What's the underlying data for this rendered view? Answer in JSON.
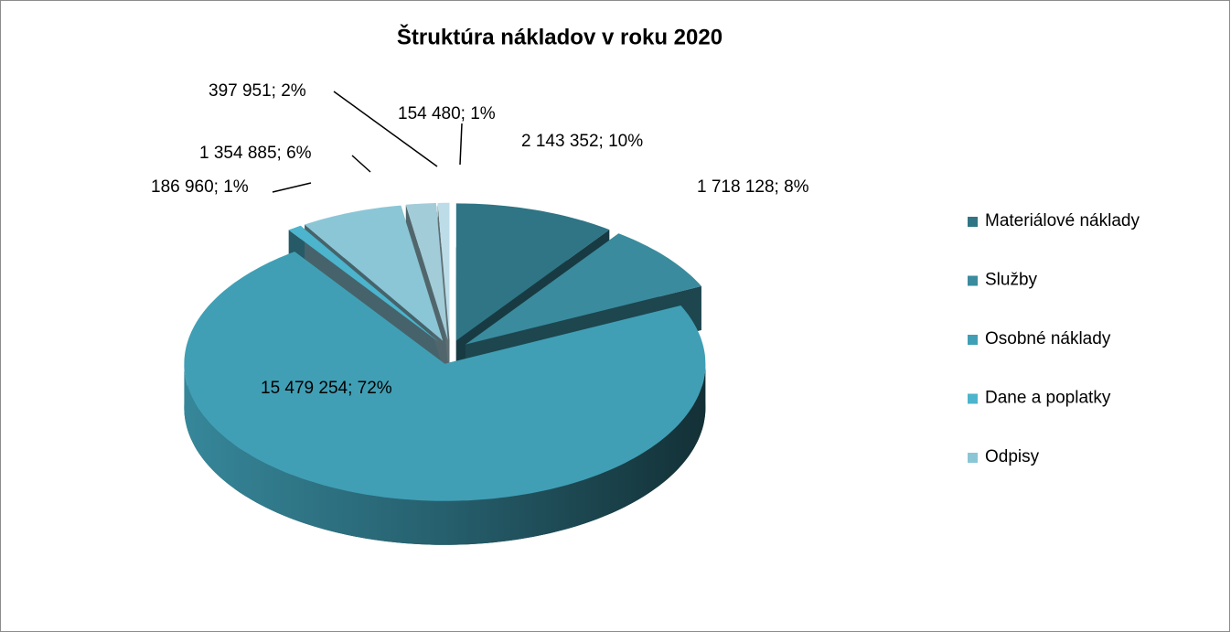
{
  "chart_data": {
    "type": "pie3d",
    "title": "Štruktúra nákladov v roku 2020",
    "categories": [
      "Materiálové náklady",
      "Služby",
      "Osobné náklady",
      "Dane a poplatky",
      "Odpisy",
      null,
      null
    ],
    "values": [
      2143352,
      1718128,
      15479254,
      186960,
      1354885,
      397951,
      154480
    ],
    "value_labels": [
      "2 143 352; 10%",
      "1 718 128; 8%",
      "15 479 254; 72%",
      "186 960; 1%",
      "1 354 885; 6%",
      "397 951; 2%",
      "154 480; 1%"
    ],
    "colors": [
      "#2f7585",
      "#3a8b9d",
      "#409fb5",
      "#4cb4cc",
      "#8bc6d6",
      "#a2ccd8",
      "#bcdde7"
    ],
    "legend": "right"
  }
}
